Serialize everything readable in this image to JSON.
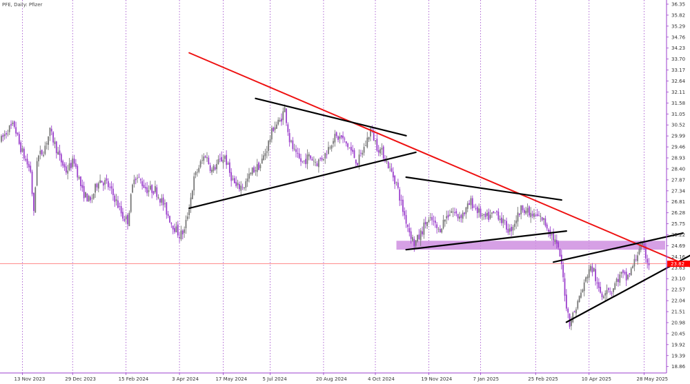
{
  "header": {
    "symbol": "PFE",
    "timeframe": "Daily",
    "name": "Pfizer",
    "title": "PFE, Daily:  Pfizer"
  },
  "colors": {
    "background": "#ffffff",
    "grid": "#9a40c8",
    "bull_candle": "#777777",
    "bear_candle": "#9b3fcc",
    "resistance_line": "#ee1111",
    "trend_lines": "#000000",
    "zone_fill": "#cf8fe0",
    "current_price_line": "#ff6666",
    "price_tag_bg": "#ff0000"
  },
  "current_price_label": "23.82",
  "chart_data": {
    "type": "candlestick",
    "title": "PFE, Daily:  Pfizer",
    "x_tick_labels": [
      "13 Nov 2023",
      "29 Dec 2023",
      "15 Feb 2024",
      "3 Apr 2024",
      "17 May 2024",
      "5 Jul 2024",
      "20 Aug 2024",
      "4 Oct 2024",
      "19 Nov 2024",
      "7 Jan 2025",
      "25 Feb 2025",
      "10 Apr 2025",
      "28 May 2025"
    ],
    "y_tick_labels": [
      "36.35",
      "35.82",
      "35.29",
      "34.76",
      "34.23",
      "33.70",
      "33.17",
      "32.64",
      "32.11",
      "31.58",
      "31.05",
      "30.52",
      "29.99",
      "29.46",
      "28.93",
      "28.40",
      "27.87",
      "27.34",
      "26.81",
      "26.28",
      "25.75",
      "25.22",
      "24.69",
      "24.16",
      "23.63",
      "23.10",
      "22.57",
      "22.04",
      "21.51",
      "20.98",
      "20.45",
      "19.92",
      "19.39",
      "18.86"
    ],
    "ylim": [
      18.6,
      36.5
    ],
    "x_range_bars": [
      0,
      410
    ],
    "vertical_grid_bars": [
      13,
      44,
      77,
      110,
      137,
      166,
      199,
      231,
      264,
      296,
      330,
      363,
      397
    ],
    "current_price": 23.82,
    "anchors": [
      [
        0,
        29.8
      ],
      [
        4,
        30.3
      ],
      [
        8,
        30.5
      ],
      [
        11,
        29.6
      ],
      [
        15,
        28.8
      ],
      [
        18,
        28.3
      ],
      [
        20,
        26.2
      ],
      [
        22,
        28.9
      ],
      [
        26,
        29.3
      ],
      [
        30,
        30.2
      ],
      [
        33,
        29.6
      ],
      [
        36,
        28.9
      ],
      [
        40,
        28.3
      ],
      [
        45,
        28.8
      ],
      [
        50,
        27.3
      ],
      [
        55,
        26.8
      ],
      [
        60,
        27.9
      ],
      [
        65,
        27.7
      ],
      [
        70,
        27.0
      ],
      [
        75,
        26.1
      ],
      [
        78,
        25.9
      ],
      [
        82,
        28.1
      ],
      [
        86,
        27.8
      ],
      [
        90,
        27.4
      ],
      [
        95,
        27.4
      ],
      [
        100,
        26.7
      ],
      [
        105,
        25.8
      ],
      [
        110,
        25.2
      ],
      [
        113,
        25.4
      ],
      [
        116,
        26.6
      ],
      [
        119,
        27.9
      ],
      [
        122,
        28.5
      ],
      [
        126,
        29.1
      ],
      [
        130,
        28.3
      ],
      [
        134,
        28.7
      ],
      [
        138,
        29.0
      ],
      [
        141,
        28.2
      ],
      [
        145,
        27.5
      ],
      [
        150,
        27.6
      ],
      [
        155,
        28.3
      ],
      [
        160,
        28.6
      ],
      [
        164,
        29.4
      ],
      [
        168,
        30.4
      ],
      [
        172,
        30.7
      ],
      [
        175,
        31.3
      ],
      [
        178,
        29.8
      ],
      [
        182,
        29.0
      ],
      [
        186,
        28.7
      ],
      [
        190,
        29.0
      ],
      [
        195,
        28.7
      ],
      [
        200,
        29.1
      ],
      [
        205,
        29.9
      ],
      [
        210,
        29.9
      ],
      [
        215,
        29.4
      ],
      [
        220,
        28.7
      ],
      [
        225,
        29.6
      ],
      [
        228,
        30.3
      ],
      [
        232,
        29.5
      ],
      [
        236,
        29.1
      ],
      [
        240,
        28.4
      ],
      [
        244,
        27.7
      ],
      [
        248,
        26.4
      ],
      [
        252,
        25.4
      ],
      [
        255,
        24.8
      ],
      [
        258,
        25.1
      ],
      [
        262,
        25.8
      ],
      [
        266,
        25.9
      ],
      [
        270,
        25.4
      ],
      [
        274,
        26.0
      ],
      [
        278,
        26.4
      ],
      [
        282,
        26.1
      ],
      [
        286,
        26.3
      ],
      [
        290,
        26.8
      ],
      [
        294,
        26.4
      ],
      [
        298,
        26.0
      ],
      [
        302,
        26.1
      ],
      [
        306,
        26.3
      ],
      [
        310,
        25.8
      ],
      [
        314,
        25.4
      ],
      [
        318,
        26.0
      ],
      [
        322,
        26.6
      ],
      [
        326,
        26.2
      ],
      [
        330,
        26.1
      ],
      [
        334,
        26.0
      ],
      [
        338,
        25.5
      ],
      [
        342,
        24.9
      ],
      [
        345,
        24.2
      ],
      [
        347,
        23.1
      ],
      [
        349,
        21.8
      ],
      [
        351,
        21.0
      ],
      [
        354,
        21.5
      ],
      [
        357,
        22.2
      ],
      [
        360,
        22.8
      ],
      [
        363,
        23.6
      ],
      [
        366,
        23.5
      ],
      [
        368,
        22.7
      ],
      [
        371,
        22.3
      ],
      [
        374,
        22.7
      ],
      [
        377,
        22.5
      ],
      [
        380,
        23.0
      ],
      [
        383,
        23.3
      ],
      [
        386,
        23.1
      ],
      [
        389,
        23.5
      ],
      [
        392,
        24.1
      ],
      [
        394,
        24.6
      ],
      [
        396,
        24.6
      ],
      [
        398,
        24.2
      ],
      [
        400,
        23.8
      ]
    ],
    "trend_lines": [
      {
        "name": "descending-resistance",
        "color": "#ee1111",
        "x1": 116,
        "y1": 34.0,
        "x2": 452,
        "y2": 22.8
      },
      {
        "name": "triangle-1-upper",
        "color": "#000000",
        "x1": 157,
        "y1": 31.8,
        "x2": 250,
        "y2": 30.0
      },
      {
        "name": "triangle-1-lower",
        "color": "#000000",
        "x1": 116,
        "y1": 26.5,
        "x2": 256,
        "y2": 29.2
      },
      {
        "name": "triangle-2-upper",
        "color": "#000000",
        "x1": 250,
        "y1": 28.0,
        "x2": 346,
        "y2": 26.9
      },
      {
        "name": "triangle-2-lower",
        "color": "#000000",
        "x1": 250,
        "y1": 24.5,
        "x2": 349,
        "y2": 25.4
      },
      {
        "name": "wedge-upper",
        "color": "#000000",
        "x1": 341,
        "y1": 23.9,
        "x2": 421,
        "y2": 25.3
      },
      {
        "name": "wedge-lower",
        "color": "#000000",
        "x1": 349,
        "y1": 21.0,
        "x2": 432,
        "y2": 24.5
      }
    ],
    "zone": {
      "name": "support-resistance-zone",
      "y_low": 24.5,
      "y_high": 24.93,
      "x_start": 244,
      "x_end": 410
    }
  }
}
